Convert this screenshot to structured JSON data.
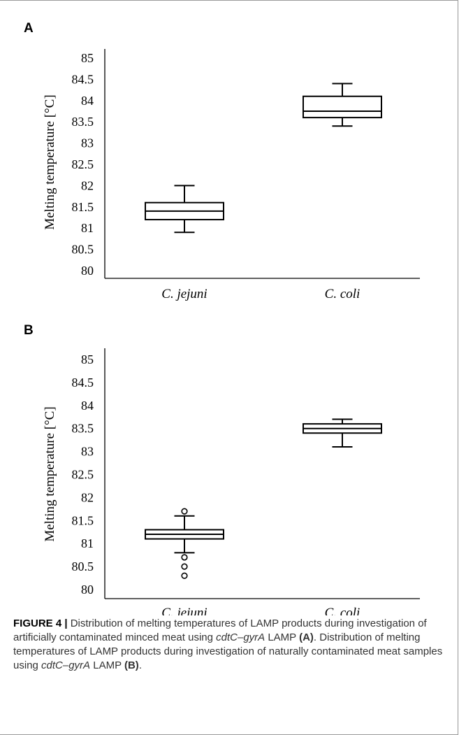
{
  "chart_data": [
    {
      "type": "box",
      "panel": "A",
      "ylabel": "Melting temperature [°C]",
      "ylim": [
        80,
        85
      ],
      "yticks": [
        "80",
        "80.5",
        "81",
        "81.5",
        "82",
        "82.5",
        "83",
        "83.5",
        "84",
        "84.5",
        "85"
      ],
      "categories": [
        "C. jejuni",
        "C. coli"
      ],
      "boxes": [
        {
          "category": "C. jejuni",
          "whisker_low": 80.9,
          "q1": 81.2,
          "median": 81.4,
          "q3": 81.6,
          "whisker_high": 82.0,
          "outliers": []
        },
        {
          "category": "C. coli",
          "whisker_low": 83.4,
          "q1": 83.6,
          "median": 83.75,
          "q3": 84.1,
          "whisker_high": 84.4,
          "outliers": []
        }
      ]
    },
    {
      "type": "box",
      "panel": "B",
      "ylabel": "Melting temperature [°C]",
      "ylim": [
        80,
        85
      ],
      "yticks": [
        "80",
        "80.5",
        "81",
        "81.5",
        "82",
        "82.5",
        "83",
        "83.5",
        "84",
        "84.5",
        "85"
      ],
      "categories": [
        "C. jejuni",
        "C. coli"
      ],
      "boxes": [
        {
          "category": "C. jejuni",
          "whisker_low": 80.8,
          "q1": 81.1,
          "median": 81.2,
          "q3": 81.3,
          "whisker_high": 81.6,
          "outliers": [
            81.7,
            80.7,
            80.5,
            80.3
          ]
        },
        {
          "category": "C. coli",
          "whisker_low": 83.1,
          "q1": 83.4,
          "median": 83.5,
          "q3": 83.6,
          "whisker_high": 83.7,
          "outliers": []
        }
      ]
    }
  ],
  "caption": {
    "label": "FIGURE 4 |",
    "p1": " Distribution of melting temperatures of LAMP products during investigation of artificially contaminated minced meat using ",
    "gene1": "cdtC–gyrA",
    "p2": " LAMP ",
    "ref1": "(A)",
    "p3": ". Distribution of melting temperatures of LAMP products during investigation of naturally contaminated meat samples using ",
    "gene2": "cdtC–gyrA",
    "p4": " LAMP ",
    "ref2": "(B)",
    "p5": "."
  }
}
